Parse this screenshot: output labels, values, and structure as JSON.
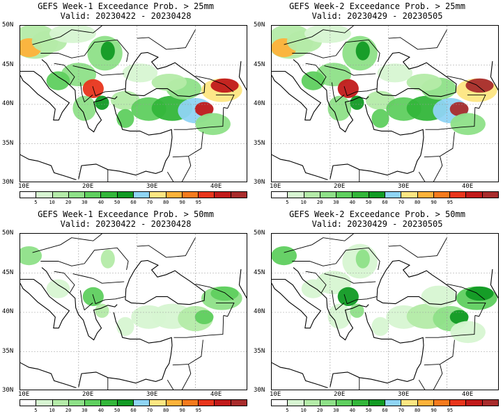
{
  "panels": [
    {
      "title": "GEFS Week-1 Exceedance Prob. > 25mm",
      "valid": "Valid: 20230422 - 20230428",
      "intensity": 1.0
    },
    {
      "title": "GEFS Week-2 Exceedance Prob. > 25mm",
      "valid": "Valid: 20230429 - 20230505",
      "intensity": 1.05
    },
    {
      "title": "GEFS Week-1 Exceedance Prob. > 50mm",
      "valid": "Valid: 20230422 - 20230428",
      "intensity": 0.45
    },
    {
      "title": "GEFS Week-2 Exceedance Prob. > 50mm",
      "valid": "Valid: 20230429 - 20230505",
      "intensity": 0.6
    }
  ],
  "lat_labels": [
    "50N",
    "45N",
    "40N",
    "35N",
    "30N"
  ],
  "lon_labels": [
    "10E",
    "20E",
    "30E",
    "40E"
  ],
  "colorbar": {
    "levels": [
      "5",
      "10",
      "20",
      "30",
      "40",
      "50",
      "60",
      "70",
      "80",
      "90",
      "95"
    ],
    "colors": [
      "#ffffff",
      "#d7f5d2",
      "#b4eba8",
      "#8ee088",
      "#5fcf5f",
      "#33b63a",
      "#119a24",
      "#8fd4f4",
      "#fde682",
      "#fdb23a",
      "#f57a1d",
      "#e8351c",
      "#c11a1a",
      "#a82c2c"
    ]
  }
}
